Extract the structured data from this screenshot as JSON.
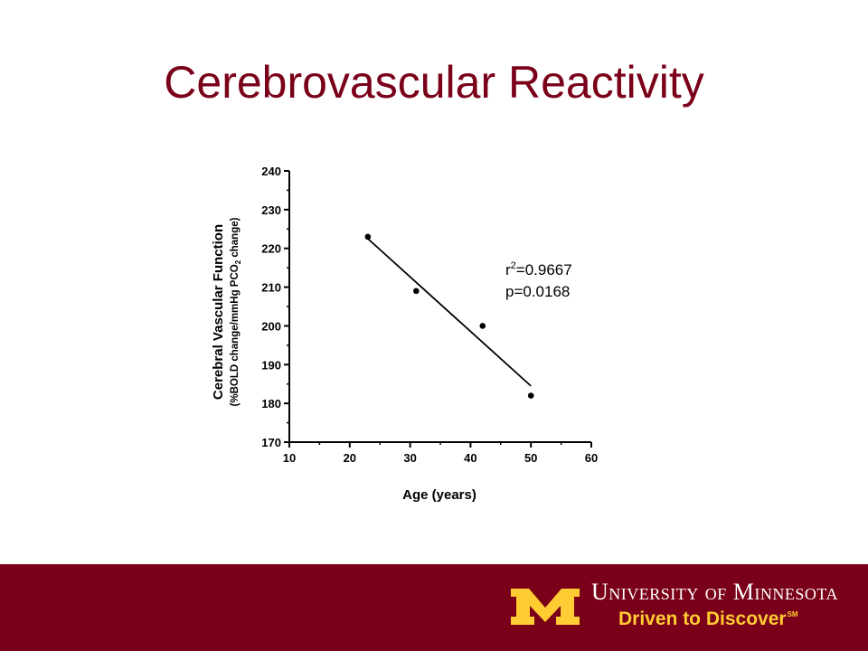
{
  "slide": {
    "title": "Cerebrovascular Reactivity"
  },
  "chart_data": {
    "type": "scatter",
    "xlabel": "Age (years)",
    "ylabel_line1": "Cerebral Vascular Function",
    "ylabel_line2_parts": [
      "(%BOLD change/mmHg PCO",
      "2",
      " change)"
    ],
    "xlim": [
      10,
      60
    ],
    "ylim": [
      170,
      240
    ],
    "xticks": [
      10,
      20,
      30,
      40,
      50,
      60
    ],
    "yticks": [
      170,
      180,
      190,
      200,
      210,
      220,
      230,
      240
    ],
    "points": [
      {
        "x": 23,
        "y": 223
      },
      {
        "x": 31,
        "y": 209
      },
      {
        "x": 42,
        "y": 200
      },
      {
        "x": 50,
        "y": 182
      }
    ],
    "fit_line": {
      "x": [
        23,
        50
      ],
      "y": [
        222.5,
        184.5
      ]
    },
    "annotation": {
      "r_prefix": "r",
      "r_exponent": "2",
      "r_value": "=0.9667",
      "p_text": "p=0.0168"
    },
    "grid": false,
    "legend": "none"
  },
  "footer": {
    "university": "University of Minnesota",
    "tagline": "Driven to Discover",
    "tagline_mark": "SM",
    "colors": {
      "maroon": "#7a0019",
      "gold": "#ffcc33"
    }
  }
}
